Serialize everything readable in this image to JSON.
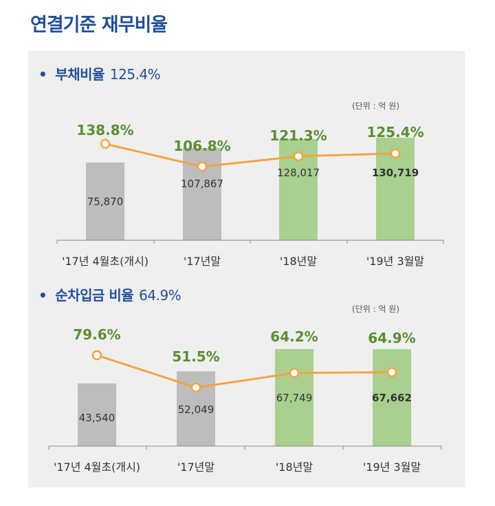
{
  "page": {
    "title": "연결기준 재무비율"
  },
  "colors": {
    "gray_bar": "#bdbdbd",
    "green_bar": "#a9d08e",
    "line": "#f4a340",
    "pct_text": "#5a8f2e",
    "title": "#1f4e9c",
    "panel": "#efefef"
  },
  "chart_data": [
    {
      "type": "bar",
      "title": "부채비율",
      "headline_value": "125.4%",
      "unit_label": "(단위 : 억 원)",
      "categories": [
        "'17년 4월초(개시)",
        "'17년말",
        "'18년말",
        "'19년 3월말"
      ],
      "series": [
        {
          "values": [
            75870,
            107867,
            128017,
            130719
          ]
        },
        {
          "values": [
            138.8,
            106.8,
            121.3,
            125.4
          ]
        }
      ],
      "amount_labels": [
        "75,870",
        "107,867",
        "128,017",
        "130,719"
      ],
      "ratio_labels": [
        "138.8%",
        "106.8%",
        "121.3%",
        "125.4%"
      ],
      "bar_colors": [
        "gray",
        "gray",
        "green",
        "green"
      ]
    },
    {
      "type": "bar",
      "title": "순차입금 비율",
      "headline_value": "64.9%",
      "unit_label": "(단위 : 억 원)",
      "categories": [
        "'17년 4월초(개시)",
        "'17년말",
        "'18년말",
        "'19년 3월말"
      ],
      "series": [
        {
          "values": [
            43540,
            52049,
            67749,
            67662
          ]
        },
        {
          "values": [
            79.6,
            51.5,
            64.2,
            64.9
          ]
        }
      ],
      "amount_labels": [
        "43,540",
        "52,049",
        "67,749",
        "67,662"
      ],
      "ratio_labels": [
        "79.6%",
        "51.5%",
        "64.2%",
        "64.9%"
      ],
      "bar_colors": [
        "gray",
        "gray",
        "green",
        "green"
      ]
    }
  ]
}
